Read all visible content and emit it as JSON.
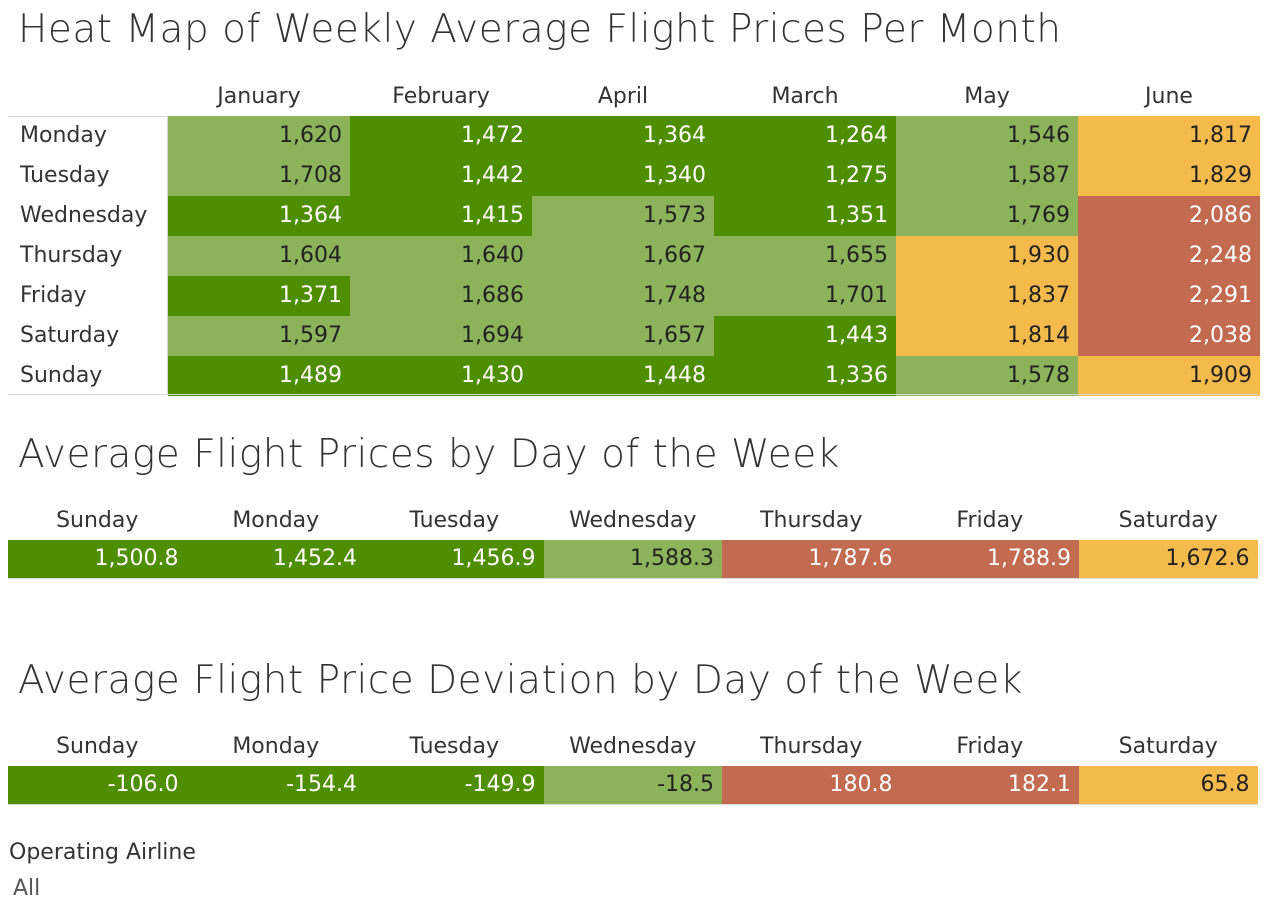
{
  "chart_data": [
    {
      "type": "heatmap",
      "title": "Heat Map of Weekly Average Flight Prices Per Month",
      "columns": [
        "January",
        "February",
        "April",
        "March",
        "May",
        "June"
      ],
      "rows": [
        "Monday",
        "Tuesday",
        "Wednesday",
        "Thursday",
        "Friday",
        "Saturday",
        "Sunday"
      ],
      "values": [
        [
          "1,620",
          "1,472",
          "1,364",
          "1,264",
          "1,546",
          "1,817"
        ],
        [
          "1,708",
          "1,442",
          "1,340",
          "1,275",
          "1,587",
          "1,829"
        ],
        [
          "1,364",
          "1,415",
          "1,573",
          "1,351",
          "1,769",
          "2,086"
        ],
        [
          "1,604",
          "1,640",
          "1,667",
          "1,655",
          "1,930",
          "2,248"
        ],
        [
          "1,371",
          "1,686",
          "1,748",
          "1,701",
          "1,837",
          "2,291"
        ],
        [
          "1,597",
          "1,694",
          "1,657",
          "1,443",
          "1,814",
          "2,038"
        ],
        [
          "1,489",
          "1,430",
          "1,448",
          "1,336",
          "1,578",
          "1,909"
        ]
      ],
      "color_classes": [
        [
          "light",
          "dark",
          "dark",
          "dark",
          "light",
          "yellow"
        ],
        [
          "light",
          "dark",
          "dark",
          "dark",
          "light",
          "yellow"
        ],
        [
          "dark",
          "dark",
          "light",
          "dark",
          "light",
          "red"
        ],
        [
          "light",
          "light",
          "light",
          "light",
          "yellow",
          "red"
        ],
        [
          "dark",
          "light",
          "light",
          "light",
          "yellow",
          "red"
        ],
        [
          "light",
          "light",
          "light",
          "dark",
          "yellow",
          "red"
        ],
        [
          "dark",
          "dark",
          "dark",
          "dark",
          "light",
          "yellow"
        ]
      ]
    },
    {
      "type": "heatmap",
      "title": "Average Flight Prices by Day of the Week",
      "categories": [
        "Sunday",
        "Monday",
        "Tuesday",
        "Wednesday",
        "Thursday",
        "Friday",
        "Saturday"
      ],
      "values": [
        "1,500.8",
        "1,452.4",
        "1,456.9",
        "1,588.3",
        "1,787.6",
        "1,788.9",
        "1,672.6"
      ],
      "color_classes": [
        "dark",
        "dark",
        "dark",
        "light",
        "red",
        "red",
        "yellow"
      ]
    },
    {
      "type": "heatmap",
      "title": "Average Flight Price Deviation by Day of the Week",
      "categories": [
        "Sunday",
        "Monday",
        "Tuesday",
        "Wednesday",
        "Thursday",
        "Friday",
        "Saturday"
      ],
      "values": [
        "-106.0",
        "-154.4",
        "-149.9",
        "-18.5",
        "180.8",
        "182.1",
        "65.8"
      ],
      "color_classes": [
        "dark",
        "dark",
        "dark",
        "light",
        "red",
        "red",
        "yellow"
      ]
    }
  ],
  "colors": {
    "dark": "#4f8e00",
    "light": "#8cb35a",
    "yellow": "#f4bb4c",
    "red": "#c26b50"
  },
  "filter": {
    "label": "Operating Airline",
    "value": "All"
  }
}
